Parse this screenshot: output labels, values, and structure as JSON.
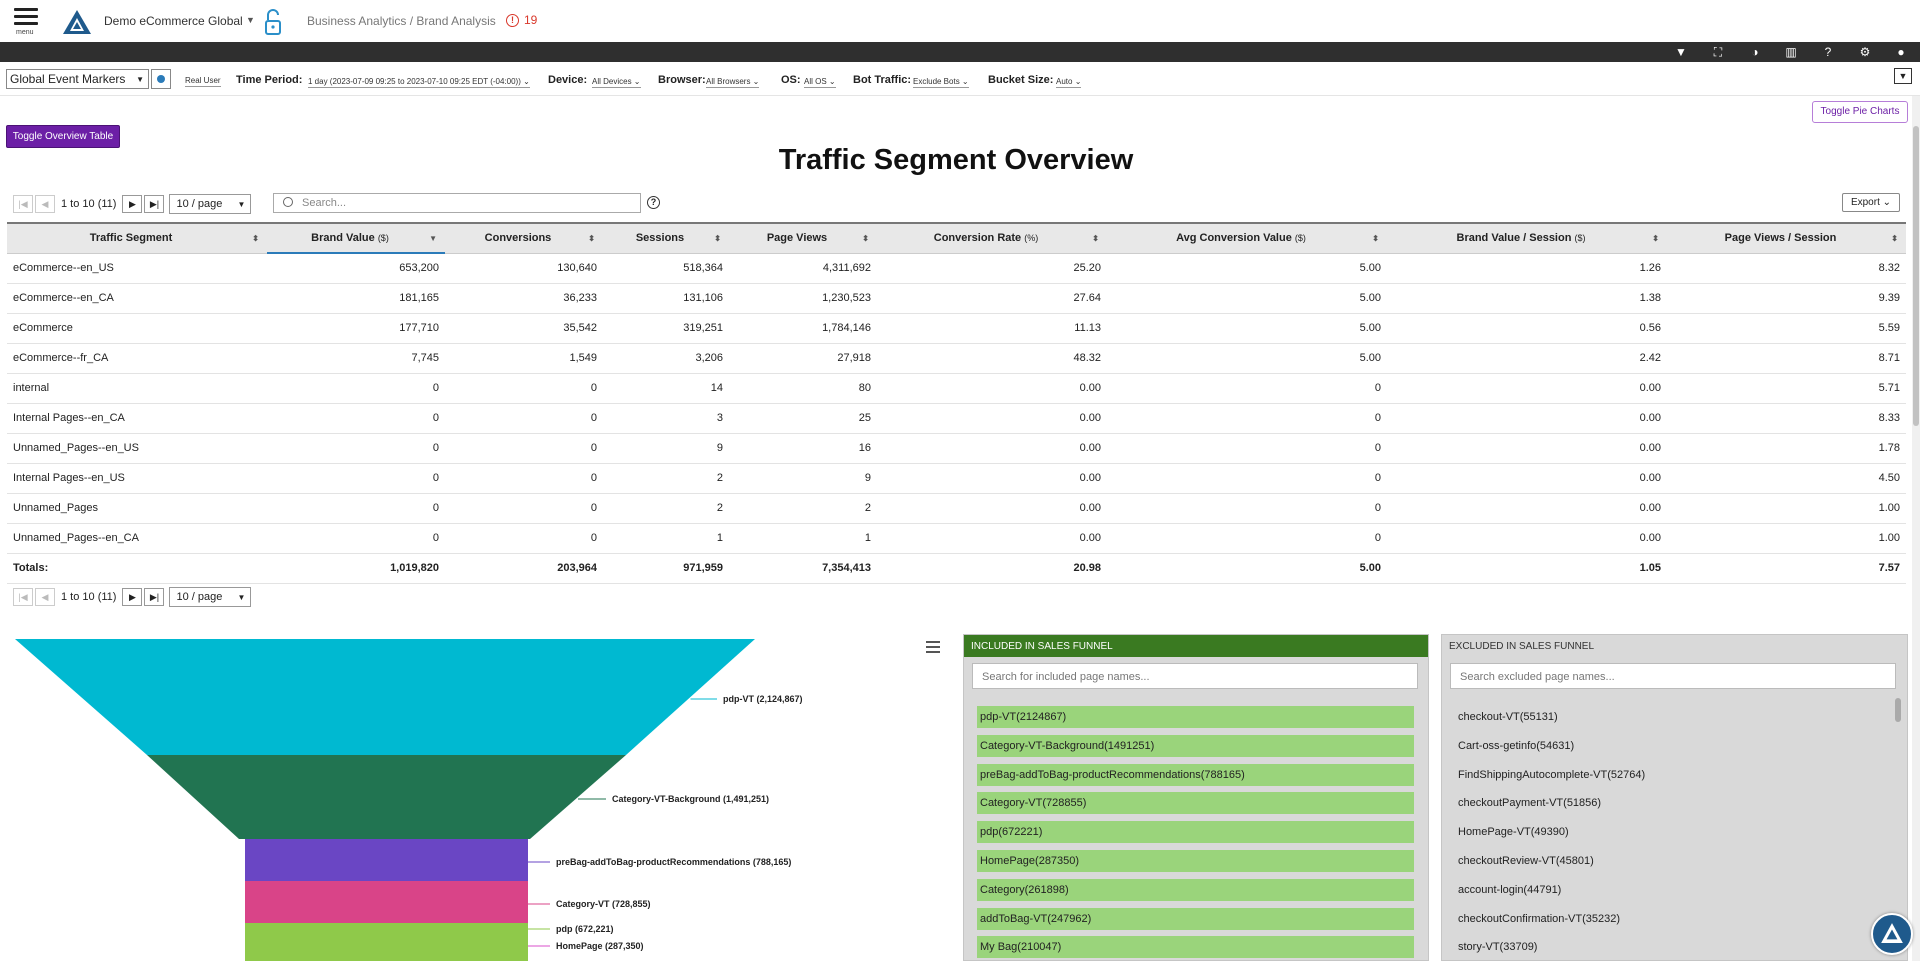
{
  "header": {
    "menu_label": "menu",
    "org_name": "Demo eCommerce Global",
    "breadcrumb": "Business Analytics / Brand Analysis",
    "alert_count": "19",
    "alert_icon": "!"
  },
  "filters": {
    "marker_select": "Global Event Markers",
    "real_user": "Real User",
    "time_label": "Time Period:",
    "time_value": "1 day (2023-07-09 09:25 to 2023-07-10 09:25 EDT (-04:00))",
    "device_label": "Device:",
    "device_value": "All Devices",
    "browser_label": "Browser:",
    "browser_value": "All Browsers",
    "os_label": "OS:",
    "os_value": "All OS",
    "bot_label": "Bot Traffic:",
    "bot_value": "Exclude Bots",
    "bucket_label": "Bucket Size:",
    "bucket_value": "Auto"
  },
  "buttons": {
    "toggle_overview": "Toggle Overview Table",
    "toggle_pie": "Toggle Pie Charts",
    "export": "Export"
  },
  "title": "Traffic Segment Overview",
  "pager": {
    "info": "1 to 10 (11)",
    "page_size": "10 / page",
    "search_placeholder": "Search..."
  },
  "table": {
    "headers": [
      {
        "label": "Traffic Segment",
        "unit": ""
      },
      {
        "label": "Brand Value",
        "unit": "($)"
      },
      {
        "label": "Conversions",
        "unit": ""
      },
      {
        "label": "Sessions",
        "unit": ""
      },
      {
        "label": "Page Views",
        "unit": ""
      },
      {
        "label": "Conversion Rate",
        "unit": "(%)"
      },
      {
        "label": "Avg Conversion Value",
        "unit": "($)"
      },
      {
        "label": "Brand Value / Session",
        "unit": "($)"
      },
      {
        "label": "Page Views / Session",
        "unit": ""
      }
    ],
    "rows": [
      [
        "eCommerce--en_US",
        "653,200",
        "130,640",
        "518,364",
        "4,311,692",
        "25.20",
        "5.00",
        "1.26",
        "8.32"
      ],
      [
        "eCommerce--en_CA",
        "181,165",
        "36,233",
        "131,106",
        "1,230,523",
        "27.64",
        "5.00",
        "1.38",
        "9.39"
      ],
      [
        "eCommerce",
        "177,710",
        "35,542",
        "319,251",
        "1,784,146",
        "11.13",
        "5.00",
        "0.56",
        "5.59"
      ],
      [
        "eCommerce--fr_CA",
        "7,745",
        "1,549",
        "3,206",
        "27,918",
        "48.32",
        "5.00",
        "2.42",
        "8.71"
      ],
      [
        "internal",
        "0",
        "0",
        "14",
        "80",
        "0.00",
        "0",
        "0.00",
        "5.71"
      ],
      [
        "Internal Pages--en_CA",
        "0",
        "0",
        "3",
        "25",
        "0.00",
        "0",
        "0.00",
        "8.33"
      ],
      [
        "Unnamed_Pages--en_US",
        "0",
        "0",
        "9",
        "16",
        "0.00",
        "0",
        "0.00",
        "1.78"
      ],
      [
        "Internal Pages--en_US",
        "0",
        "0",
        "2",
        "9",
        "0.00",
        "0",
        "0.00",
        "4.50"
      ],
      [
        "Unnamed_Pages",
        "0",
        "0",
        "2",
        "2",
        "0.00",
        "0",
        "0.00",
        "1.00"
      ],
      [
        "Unnamed_Pages--en_CA",
        "0",
        "0",
        "1",
        "1",
        "0.00",
        "0",
        "0.00",
        "1.00"
      ]
    ],
    "totals": [
      "Totals:",
      "1,019,820",
      "203,964",
      "971,959",
      "7,354,413",
      "20.98",
      "5.00",
      "1.05",
      "7.57"
    ]
  },
  "funnel": {
    "stages": [
      {
        "label": "pdp-VT (2,124,867)",
        "value": 2124867,
        "color": "#00b9d1"
      },
      {
        "label": "Category-VT-Background (1,491,251)",
        "value": 1491251,
        "color": "#217451"
      },
      {
        "label": "preBag-addToBag-productRecommendations (788,165)",
        "value": 788165,
        "color": "#6a46c4"
      },
      {
        "label": "Category-VT (728,855)",
        "value": 728855,
        "color": "#d94488"
      },
      {
        "label": "pdp (672,221)",
        "value": 672221,
        "color": "#8fc94a"
      },
      {
        "label": "HomePage (287,350)",
        "value": 287350,
        "color": "#d84fcb"
      }
    ]
  },
  "included": {
    "title": "INCLUDED IN SALES FUNNEL",
    "search_placeholder": "Search for included page names...",
    "items": [
      "pdp-VT(2124867)",
      "Category-VT-Background(1491251)",
      "preBag-addToBag-productRecommendations(788165)",
      "Category-VT(728855)",
      "pdp(672221)",
      "HomePage(287350)",
      "Category(261898)",
      "addToBag-VT(247962)",
      "My Bag(210047)"
    ]
  },
  "excluded": {
    "title": "EXCLUDED IN SALES FUNNEL",
    "search_placeholder": "Search excluded page names...",
    "items": [
      "checkout-VT(55131)",
      "Cart-oss-getinfo(54631)",
      "FindShippingAutocomplete-VT(52764)",
      "checkoutPayment-VT(51856)",
      "HomePage-VT(49390)",
      "checkoutReview-VT(45801)",
      "account-login(44791)",
      "checkoutConfirmation-VT(35232)",
      "story-VT(33709)"
    ]
  }
}
